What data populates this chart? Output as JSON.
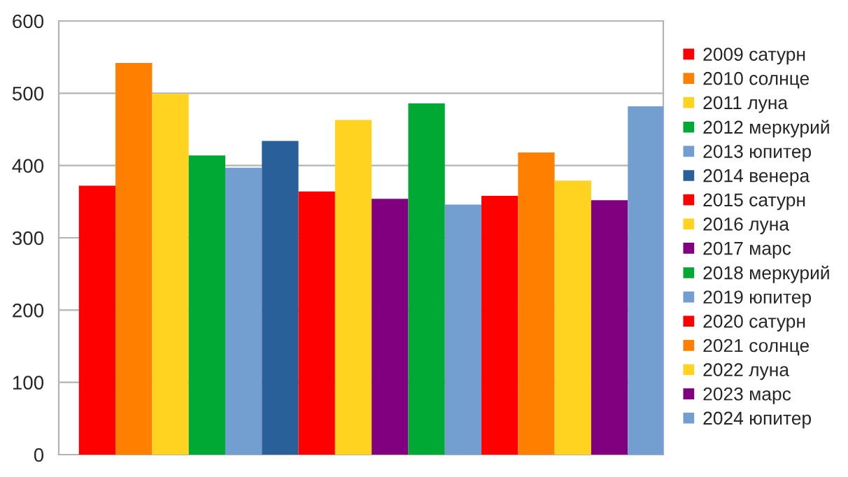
{
  "chart_data": {
    "type": "bar",
    "categories": [
      null
    ],
    "series": [
      {
        "name": "2009 сатурн",
        "color": "#ff0000",
        "values": [
          372
        ]
      },
      {
        "name": "2010 солнце",
        "color": "#ff8000",
        "values": [
          542
        ]
      },
      {
        "name": "2011 луна",
        "color": "#ffd320",
        "values": [
          499
        ]
      },
      {
        "name": "2012 меркурий",
        "color": "#00a933",
        "values": [
          414
        ]
      },
      {
        "name": "2013 юпитер",
        "color": "#729fcf",
        "values": [
          397
        ]
      },
      {
        "name": "2014 венера",
        "color": "#2a6099",
        "values": [
          434
        ]
      },
      {
        "name": "2015 сатурн",
        "color": "#ff0000",
        "values": [
          364
        ]
      },
      {
        "name": "2016 луна",
        "color": "#ffd320",
        "values": [
          463
        ]
      },
      {
        "name": "2017 марс",
        "color": "#800080",
        "values": [
          354
        ]
      },
      {
        "name": "2018 меркурий",
        "color": "#00a933",
        "values": [
          486
        ]
      },
      {
        "name": "2019 юпитер",
        "color": "#729fcf",
        "values": [
          346
        ]
      },
      {
        "name": "2020 сатурн",
        "color": "#ff0000",
        "values": [
          358
        ]
      },
      {
        "name": "2021 солнце",
        "color": "#ff8000",
        "values": [
          418
        ]
      },
      {
        "name": "2022 луна",
        "color": "#ffd320",
        "values": [
          379
        ]
      },
      {
        "name": "2023 марс",
        "color": "#800080",
        "values": [
          352
        ]
      },
      {
        "name": "2024 юпитер",
        "color": "#729fcf",
        "values": [
          482
        ]
      }
    ],
    "ylim": [
      0,
      600
    ],
    "yticks": [
      0,
      100,
      200,
      300,
      400,
      500,
      600
    ],
    "grid": "y",
    "legend": "right"
  }
}
